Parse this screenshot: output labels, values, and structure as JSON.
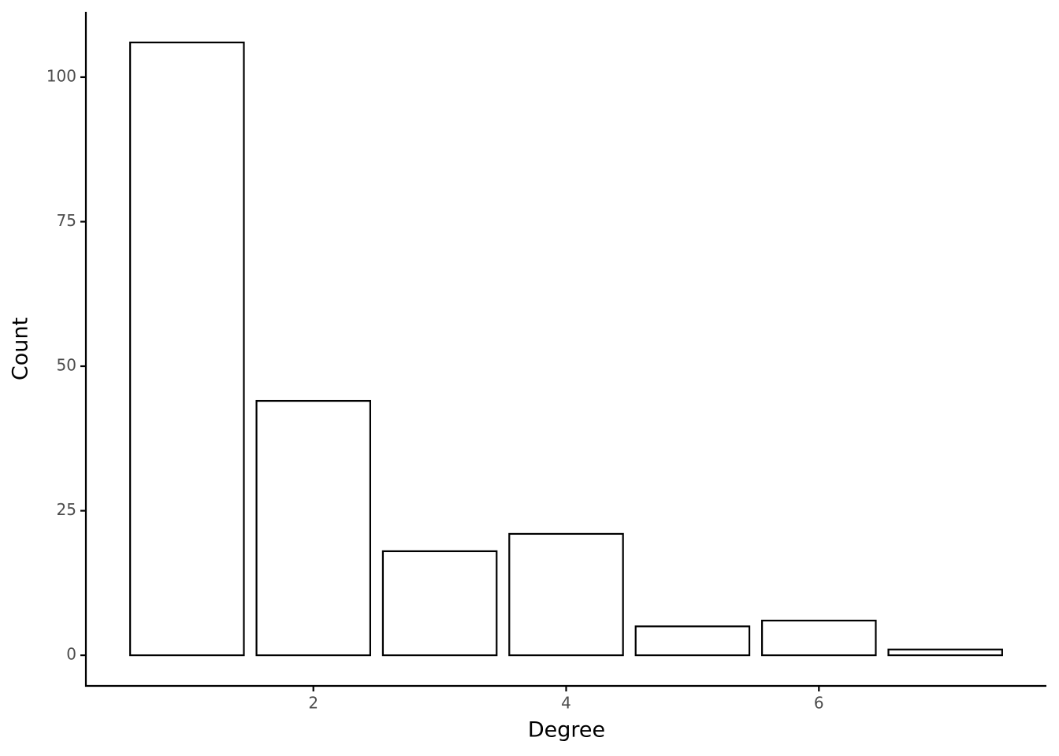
{
  "chart_data": {
    "type": "bar",
    "x_label": "Degree",
    "y_label": "Count",
    "x": [
      1,
      2,
      3,
      4,
      5,
      6,
      7
    ],
    "values": [
      106,
      44,
      18,
      21,
      5,
      6,
      1
    ],
    "color": "#ffffff",
    "xlim": [
      0.2,
      7.8
    ],
    "xticks": [
      2,
      4,
      6
    ],
    "ylim": [
      -5.3,
      111.3
    ],
    "yticks": [
      0,
      25,
      50,
      75,
      100
    ],
    "grid": false
  }
}
